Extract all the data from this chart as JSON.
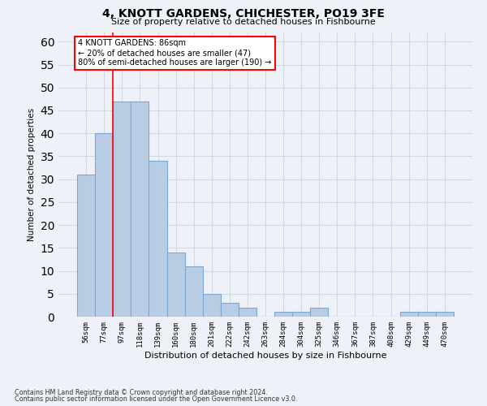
{
  "title1": "4, KNOTT GARDENS, CHICHESTER, PO19 3FE",
  "title2": "Size of property relative to detached houses in Fishbourne",
  "xlabel": "Distribution of detached houses by size in Fishbourne",
  "ylabel": "Number of detached properties",
  "categories": [
    "56sqm",
    "77sqm",
    "97sqm",
    "118sqm",
    "139sqm",
    "160sqm",
    "180sqm",
    "201sqm",
    "222sqm",
    "242sqm",
    "263sqm",
    "284sqm",
    "304sqm",
    "325sqm",
    "346sqm",
    "367sqm",
    "387sqm",
    "408sqm",
    "429sqm",
    "449sqm",
    "470sqm"
  ],
  "values": [
    31,
    40,
    47,
    47,
    34,
    14,
    11,
    5,
    3,
    2,
    0,
    1,
    1,
    2,
    0,
    0,
    0,
    0,
    1,
    1,
    1
  ],
  "bar_color": "#b8cce4",
  "bar_edge_color": "#7ba7d4",
  "red_line_x": 1.5,
  "annotation_text": "4 KNOTT GARDENS: 86sqm\n← 20% of detached houses are smaller (47)\n80% of semi-detached houses are larger (190) →",
  "annotation_box_color": "white",
  "annotation_box_edge_color": "red",
  "ylim": [
    0,
    62
  ],
  "yticks": [
    0,
    5,
    10,
    15,
    20,
    25,
    30,
    35,
    40,
    45,
    50,
    55,
    60
  ],
  "grid_color": "#d0d8e8",
  "footer1": "Contains HM Land Registry data © Crown copyright and database right 2024.",
  "footer2": "Contains public sector information licensed under the Open Government Licence v3.0.",
  "bg_color": "#eef2f8"
}
